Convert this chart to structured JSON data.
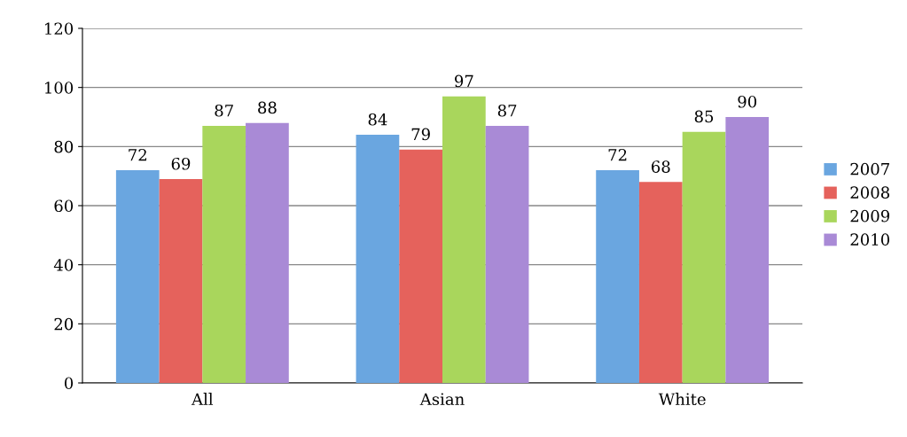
{
  "chart_data": {
    "type": "bar",
    "categories": [
      "All",
      "Asian",
      "White"
    ],
    "series": [
      {
        "name": "2007",
        "color": "#6aa6e0",
        "values": [
          72,
          84,
          72
        ]
      },
      {
        "name": "2008",
        "color": "#e5625c",
        "values": [
          69,
          79,
          68
        ]
      },
      {
        "name": "2009",
        "color": "#a9d65c",
        "values": [
          87,
          97,
          85
        ]
      },
      {
        "name": "2010",
        "color": "#a98ad6",
        "values": [
          88,
          87,
          90
        ]
      }
    ],
    "ylim": [
      0,
      120
    ],
    "yticks": [
      0,
      20,
      40,
      60,
      80,
      100,
      120
    ],
    "grid": "y",
    "legend": "right",
    "data_labels": true
  }
}
